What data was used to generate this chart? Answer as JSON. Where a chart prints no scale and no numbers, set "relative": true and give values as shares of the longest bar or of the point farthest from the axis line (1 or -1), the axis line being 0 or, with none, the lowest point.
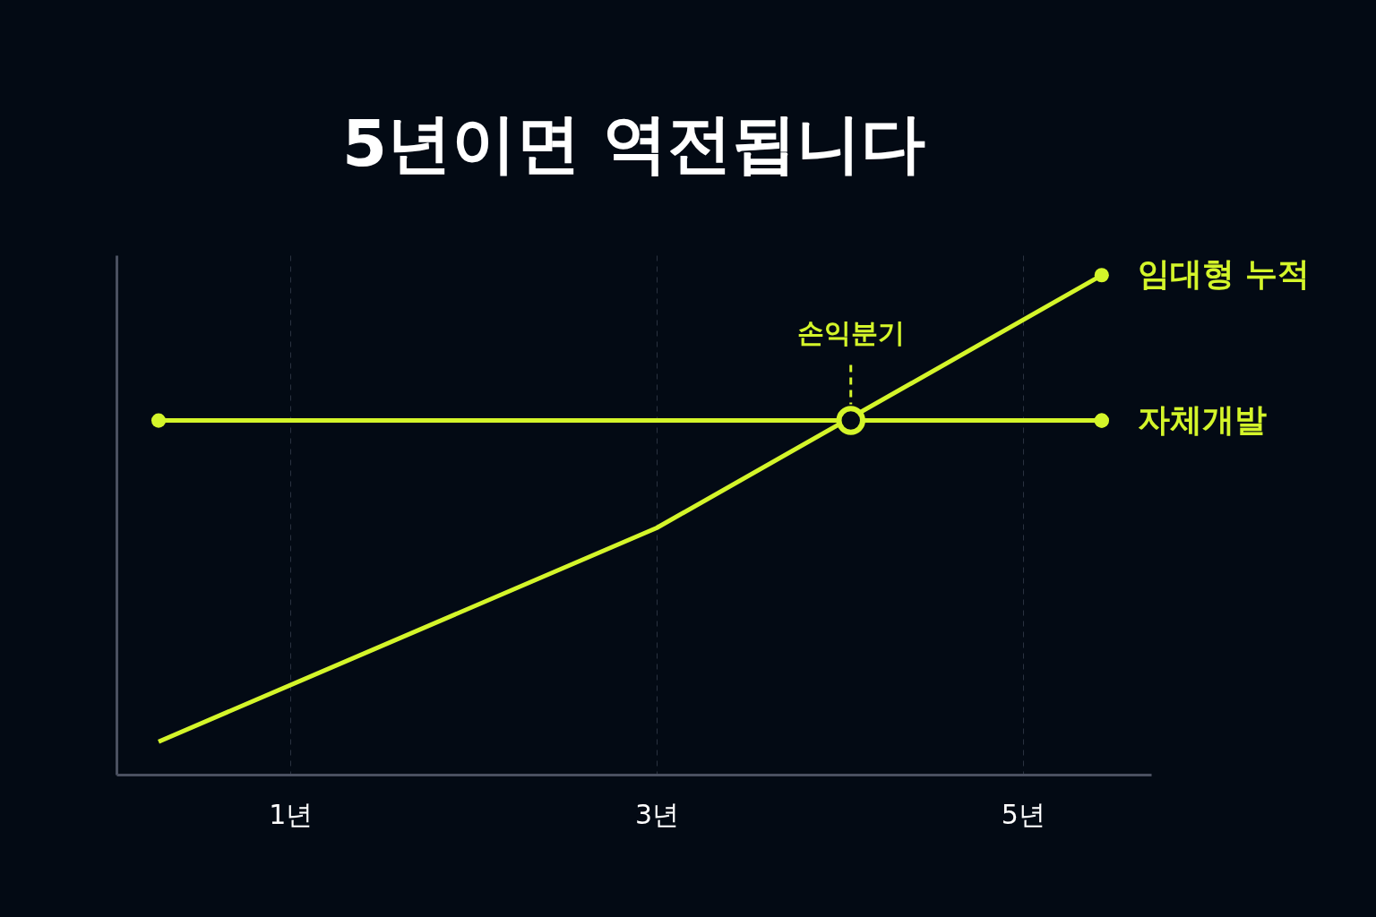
{
  "chart_data": {
    "type": "line",
    "title": "5년이면 역전됩니다",
    "relative": true,
    "xlim": [
      0.05,
      5.7
    ],
    "xticks": [
      {
        "value": 1,
        "label": "1년"
      },
      {
        "value": 3,
        "label": "3년"
      },
      {
        "value": 5,
        "label": "5년"
      }
    ],
    "grid": "x",
    "legend": false,
    "series": [
      {
        "name": "임대형 누적",
        "color": "#d4f52a",
        "x": [
          0.28,
          3,
          5.43
        ],
        "values": [
          0.066,
          0.494,
          1
        ]
      },
      {
        "name": "자체개발",
        "color": "#d4f52a",
        "x": [
          0.28,
          5.43
        ],
        "values": [
          0.709,
          0.709
        ],
        "marker": "circle"
      }
    ],
    "annotations": [
      {
        "text": "손익분기",
        "x": 4.06,
        "y": 0.709
      }
    ]
  }
}
